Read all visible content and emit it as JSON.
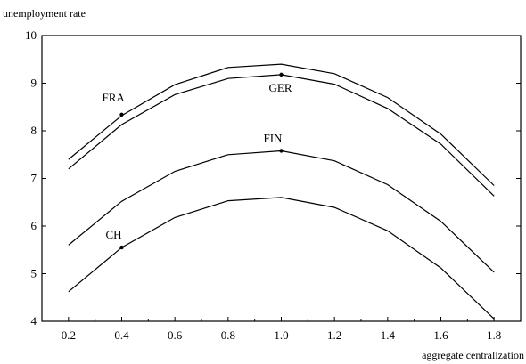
{
  "chart_data": {
    "type": "line",
    "title": "",
    "xlabel": "aggregate centralization",
    "ylabel": "unemployment rate",
    "xlim": [
      0.1,
      1.9
    ],
    "ylim": [
      4,
      10
    ],
    "x": [
      0.2,
      0.4,
      0.6,
      0.8,
      1.0,
      1.2,
      1.4,
      1.6,
      1.8
    ],
    "x_ticks": [
      "0.2",
      "0.4",
      "0.6",
      "0.8",
      "1.0",
      "1.2",
      "1.4",
      "1.6",
      "1.8"
    ],
    "y_ticks": [
      "4",
      "5",
      "6",
      "7",
      "8",
      "9",
      "10"
    ],
    "grid": false,
    "legend": "none",
    "series": [
      {
        "values": [
          7.4,
          8.32,
          8.97,
          9.33,
          9.4,
          9.2,
          8.7,
          7.93,
          6.85
        ]
      },
      {
        "values": [
          7.2,
          8.13,
          8.76,
          9.1,
          9.18,
          8.98,
          8.47,
          7.72,
          6.63
        ]
      },
      {
        "values": [
          5.6,
          6.52,
          7.15,
          7.5,
          7.58,
          7.37,
          6.87,
          6.1,
          5.03
        ]
      },
      {
        "values": [
          4.62,
          5.55,
          6.18,
          6.53,
          6.6,
          6.39,
          5.9,
          5.12,
          4.05
        ]
      }
    ],
    "annotations": [
      {
        "label": "FRA",
        "x": 0.4,
        "y": 8.34
      },
      {
        "label": "GER",
        "x": 1.0,
        "y": 9.18
      },
      {
        "label": "FIN",
        "x": 1.0,
        "y": 7.58
      },
      {
        "label": "CH",
        "x": 0.4,
        "y": 5.55
      }
    ]
  }
}
